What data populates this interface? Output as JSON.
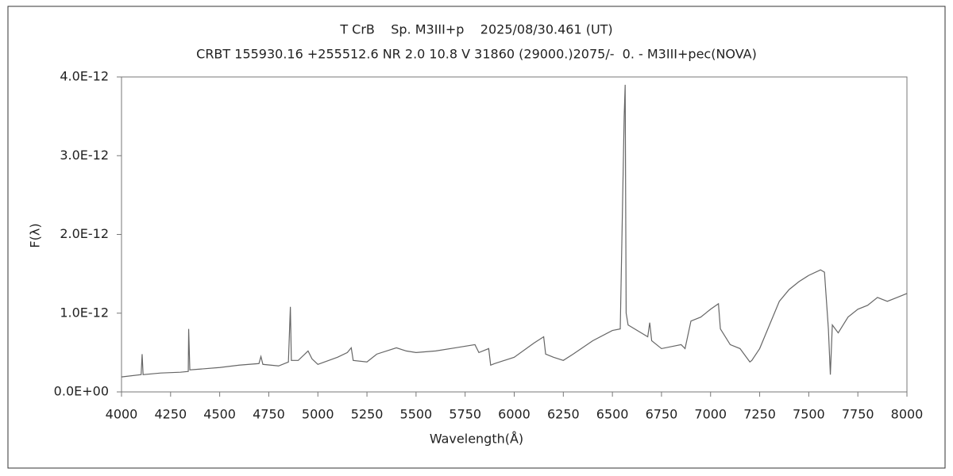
{
  "chart_data": {
    "type": "line",
    "title": "T CrB    Sp. M3III+p    2025/08/30.461 (UT)",
    "subtitle": "CRBT 155930.16 +255512.6 NR 2.0 10.8 V 31860 (29000.)2075/-  0. - M3III+pec(NOVA)",
    "x_label": "Wavelength(Å)",
    "y_label": "F(λ)",
    "xlim": [
      4000,
      8000
    ],
    "xticks": [
      4000,
      4250,
      4500,
      4750,
      5000,
      5250,
      5500,
      5750,
      6000,
      6250,
      6500,
      6750,
      7000,
      7250,
      7500,
      7750,
      8000
    ],
    "ylim": [
      0,
      4e-12
    ],
    "yticks": [
      {
        "value": 0,
        "label": "0.0E+00"
      },
      {
        "value": 1e-12,
        "label": "1.0E-12"
      },
      {
        "value": 2e-12,
        "label": "2.0E-12"
      },
      {
        "value": 3e-12,
        "label": "3.0E-12"
      },
      {
        "value": 4e-12,
        "label": "4.0E-12"
      }
    ],
    "grid": false,
    "series": [
      {
        "color": "#666666",
        "x": [
          4000,
          4100,
          4105,
          4110,
          4200,
          4300,
          4340,
          4342,
          4348,
          4400,
          4500,
          4600,
          4700,
          4710,
          4720,
          4800,
          4850,
          4860,
          4865,
          4900,
          4950,
          4970,
          5000,
          5100,
          5150,
          5170,
          5180,
          5250,
          5300,
          5400,
          5450,
          5500,
          5600,
          5700,
          5800,
          5820,
          5870,
          5880,
          5900,
          6000,
          6100,
          6150,
          6160,
          6200,
          6250,
          6300,
          6400,
          6500,
          6540,
          6560,
          6565,
          6570,
          6580,
          6600,
          6680,
          6690,
          6700,
          6750,
          6850,
          6870,
          6900,
          6950,
          7000,
          7040,
          7050,
          7100,
          7150,
          7200,
          7210,
          7250,
          7300,
          7350,
          7400,
          7450,
          7500,
          7560,
          7580,
          7600,
          7610,
          7620,
          7650,
          7700,
          7750,
          7800,
          7850,
          7900,
          7950,
          8000
        ],
        "values": [
          1.9e-13,
          2.2e-13,
          4.8e-13,
          2.2e-13,
          2.4e-13,
          2.5e-13,
          2.6e-13,
          8e-13,
          2.8e-13,
          2.9e-13,
          3.1e-13,
          3.4e-13,
          3.6e-13,
          4.5e-13,
          3.5e-13,
          3.3e-13,
          3.8e-13,
          1.08e-12,
          4e-13,
          4e-13,
          5.2e-13,
          4.2e-13,
          3.5e-13,
          4.4e-13,
          5e-13,
          5.6e-13,
          4e-13,
          3.8e-13,
          4.8e-13,
          5.6e-13,
          5.2e-13,
          5e-13,
          5.2e-13,
          5.6e-13,
          6e-13,
          5e-13,
          5.5e-13,
          3.4e-13,
          3.6e-13,
          4.4e-13,
          6.2e-13,
          7e-13,
          4.8e-13,
          4.4e-13,
          4e-13,
          4.8e-13,
          6.5e-13,
          7.8e-13,
          8e-13,
          3.5e-12,
          3.9e-12,
          1e-12,
          8.5e-13,
          8.2e-13,
          7e-13,
          8.8e-13,
          6.5e-13,
          5.5e-13,
          6e-13,
          5.5e-13,
          9e-13,
          9.5e-13,
          1.05e-12,
          1.12e-12,
          8e-13,
          6e-13,
          5.5e-13,
          3.8e-13,
          4e-13,
          5.5e-13,
          8.5e-13,
          1.15e-12,
          1.3e-12,
          1.4e-12,
          1.48e-12,
          1.55e-12,
          1.52e-12,
          8e-13,
          2.2e-13,
          8.5e-13,
          7.5e-13,
          9.5e-13,
          1.05e-12,
          1.1e-12,
          1.2e-12,
          1.15e-12,
          1.2e-12,
          1.25e-12
        ]
      }
    ]
  }
}
